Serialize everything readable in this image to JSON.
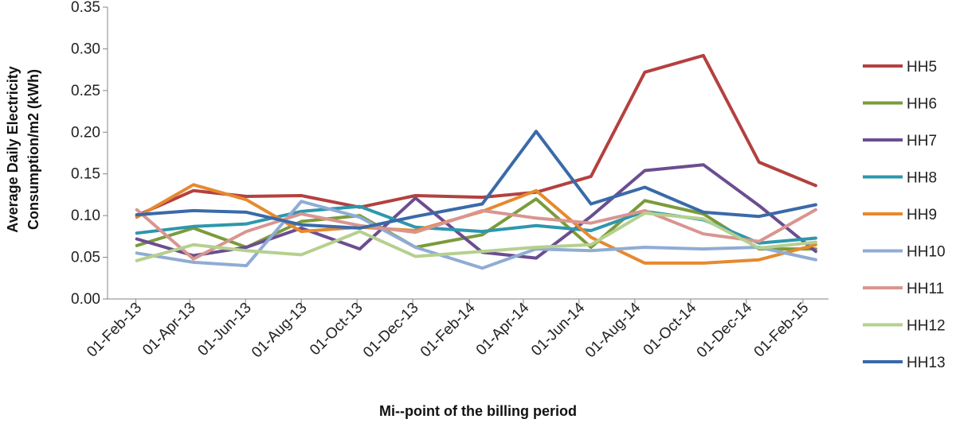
{
  "chart_data": {
    "type": "line",
    "title": "",
    "xlabel": "Mi--point of the billing period",
    "ylabel_lines": [
      "Average Daily Electricity",
      "Consumption/m2  (kWh)"
    ],
    "ylim": [
      0,
      0.35
    ],
    "yticks": [
      "0.00",
      "0.05",
      "0.10",
      "0.15",
      "0.20",
      "0.25",
      "0.30",
      "0.35"
    ],
    "x_tick_labels": [
      "01-Feb-13",
      "01-Apr-13",
      "01-Jun-13",
      "01-Aug-13",
      "01-Oct-13",
      "01-Dec-13",
      "01-Feb-14",
      "01-Apr-14",
      "01-Jun-14",
      "01-Aug-14",
      "01-Oct-14",
      "01-Dec-14",
      "01-Feb-15"
    ],
    "x_tick_dates": [
      "2013-02-01",
      "2013-04-01",
      "2013-06-01",
      "2013-08-01",
      "2013-10-01",
      "2013-12-01",
      "2014-02-01",
      "2014-04-01",
      "2014-06-01",
      "2014-08-01",
      "2014-10-01",
      "2014-12-01",
      "2015-02-01"
    ],
    "x_range": [
      "2013-01-01",
      "2015-03-01"
    ],
    "x": [
      "2013-02-02",
      "2013-04-05",
      "2013-06-02",
      "2013-08-01",
      "2013-10-04",
      "2013-12-04",
      "2014-02-15",
      "2014-04-15",
      "2014-06-14",
      "2014-08-12",
      "2014-10-15",
      "2014-12-15",
      "2015-02-15"
    ],
    "grid": false,
    "legend_position": "right",
    "series": [
      {
        "name": "HH5",
        "color": "#b3413f",
        "values": [
          0.1,
          0.13,
          0.123,
          0.124,
          0.11,
          0.124,
          0.122,
          0.128,
          0.147,
          0.272,
          0.292,
          0.164,
          0.136
        ]
      },
      {
        "name": "HH6",
        "color": "#7b9b3b",
        "values": [
          0.064,
          0.085,
          0.062,
          0.093,
          0.1,
          0.062,
          0.077,
          0.12,
          0.062,
          0.118,
          0.102,
          0.06,
          0.06
        ]
      },
      {
        "name": "HH7",
        "color": "#6c4d90",
        "values": [
          0.072,
          0.052,
          0.062,
          0.085,
          0.06,
          0.121,
          0.056,
          0.049,
          0.099,
          0.154,
          0.161,
          0.112,
          0.057
        ]
      },
      {
        "name": "HH8",
        "color": "#2e97ad",
        "values": [
          0.079,
          0.087,
          0.09,
          0.105,
          0.111,
          0.086,
          0.081,
          0.088,
          0.082,
          0.105,
          0.095,
          0.067,
          0.073
        ]
      },
      {
        "name": "HH9",
        "color": "#e6892f",
        "values": [
          0.098,
          0.137,
          0.119,
          0.081,
          0.086,
          0.082,
          0.105,
          0.13,
          0.074,
          0.043,
          0.043,
          0.047,
          0.065
        ]
      },
      {
        "name": "HH10",
        "color": "#8facd4",
        "values": [
          0.055,
          0.044,
          0.04,
          0.117,
          0.098,
          0.062,
          0.037,
          0.06,
          0.058,
          0.062,
          0.06,
          0.062,
          0.047
        ]
      },
      {
        "name": "HH11",
        "color": "#d99590",
        "values": [
          0.107,
          0.048,
          0.081,
          0.102,
          0.088,
          0.08,
          0.106,
          0.097,
          0.091,
          0.106,
          0.078,
          0.069,
          0.107
        ]
      },
      {
        "name": "HH12",
        "color": "#b5d08f",
        "values": [
          0.046,
          0.065,
          0.058,
          0.053,
          0.081,
          0.051,
          0.057,
          0.062,
          0.065,
          0.103,
          0.096,
          0.061,
          0.068
        ]
      },
      {
        "name": "HH13",
        "color": "#3a6aa8",
        "values": [
          0.101,
          0.106,
          0.104,
          0.089,
          0.085,
          0.099,
          0.114,
          0.201,
          0.114,
          0.134,
          0.104,
          0.099,
          0.113
        ]
      }
    ]
  }
}
